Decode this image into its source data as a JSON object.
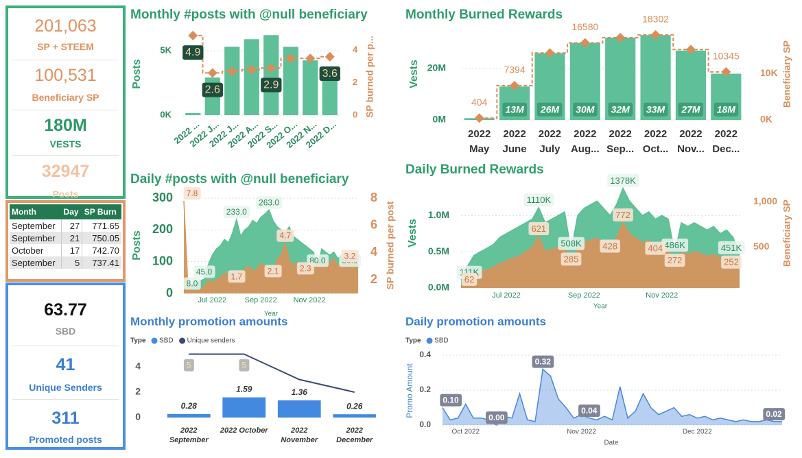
{
  "summary": [
    {
      "value": "201,063",
      "label": "SP + STEEM"
    },
    {
      "value": "100,531",
      "label": "Beneficiary SP"
    },
    {
      "value": "180M",
      "label": "VESTS"
    },
    {
      "value": "32947",
      "label": "Posts"
    }
  ],
  "table": {
    "header": [
      "Month",
      "Day",
      "SP Burn"
    ],
    "rows": [
      [
        "September",
        "27",
        "771.65"
      ],
      [
        "September",
        "21",
        "750.05"
      ],
      [
        "October",
        "17",
        "742.70"
      ],
      [
        "September",
        "5",
        "737.41"
      ]
    ]
  },
  "promotion_summary": [
    {
      "value": "63.77",
      "label": "SBD"
    },
    {
      "value": "41",
      "label": "Unique Senders"
    },
    {
      "value": "311",
      "label": "Promoted posts"
    }
  ],
  "chart_data": [
    {
      "type": "bar_line",
      "title": "Monthly #posts with @null beneficiary",
      "categories": [
        "2022 ...",
        "2022 J...",
        "2022 J...",
        "2022 A...",
        "2022 S...",
        "2022 O...",
        "2022 N...",
        "2022 D..."
      ],
      "ylabel": "Posts",
      "y2label": "SP burned per p...",
      "ylim": [
        0,
        6500
      ],
      "yticks": [
        {
          "value": 0,
          "label": "0K"
        },
        {
          "value": 5000,
          "label": "5K"
        }
      ],
      "y2lim": [
        0,
        5.15
      ],
      "y2ticks": [
        0,
        2,
        4
      ],
      "grid": true,
      "series": [
        {
          "type": "bar",
          "color": "#5fbf98",
          "values": [
            160,
            2930,
            5320,
            5900,
            6220,
            5320,
            4260,
            3460
          ]
        },
        {
          "type": "line",
          "axis": "y2",
          "color": "#d98e5a",
          "values": [
            4.9,
            2.6,
            2.7,
            2.8,
            2.9,
            3.5,
            3.5,
            3.6
          ],
          "value_labels": [
            "4.9",
            "2.6",
            null,
            null,
            "2.9",
            null,
            null,
            "3.6"
          ]
        }
      ]
    },
    {
      "type": "bar_line",
      "title": "Monthly Burned Rewards",
      "categories": [
        [
          "2022",
          "May"
        ],
        [
          "2022",
          "June"
        ],
        [
          "2022",
          "July"
        ],
        [
          "2022",
          "Aug..."
        ],
        [
          "2022",
          "Sep..."
        ],
        [
          "2022",
          "Oct..."
        ],
        [
          "2022",
          "Nov..."
        ],
        [
          "2022",
          "Dec..."
        ]
      ],
      "ylabel": "Vests",
      "y2label": "Beneficiary SP",
      "ylim": [
        0,
        36000000
      ],
      "yticks": [
        {
          "value": 0,
          "label": "0M"
        },
        {
          "value": 20000000,
          "label": "20M"
        }
      ],
      "y2lim": [
        0,
        19900
      ],
      "y2ticks": [
        {
          "value": 0,
          "label": "0K"
        },
        {
          "value": 10000,
          "label": "10K"
        }
      ],
      "grid": true,
      "series": [
        {
          "type": "bar",
          "color": "#5fbf98",
          "values": [
            700000,
            13000000,
            26000000,
            30000000,
            32000000,
            33000000,
            27000000,
            18000000
          ],
          "value_labels": [
            null,
            "13M",
            "26M",
            "30M",
            "32M",
            "33M",
            "27M",
            "18M"
          ]
        },
        {
          "type": "line",
          "axis": "y2",
          "color": "#d98e5a",
          "values": [
            404,
            7394,
            14400,
            16580,
            17700,
            18302,
            15150,
            10345
          ],
          "value_labels": [
            "404",
            "7394",
            null,
            "16580",
            null,
            "18302",
            null,
            "10345"
          ]
        }
      ]
    },
    {
      "type": "area",
      "title": "Daily #posts with @null beneficiary",
      "categories": [
        null,
        null,
        null,
        null,
        null,
        null,
        null,
        "Jul 2022",
        null,
        null,
        null,
        null,
        null,
        null,
        null,
        null,
        null,
        null,
        null,
        "Sep 2022",
        null,
        null,
        null,
        null,
        null,
        null,
        null,
        null,
        null,
        null,
        null,
        "Nov 2022",
        null,
        null,
        null,
        null,
        null,
        null,
        null,
        null,
        null,
        null,
        null,
        null
      ],
      "ylabel": "Posts",
      "y2label": "SP burned per post",
      "xlabel": "Year",
      "ylim": [
        0,
        300
      ],
      "yticks": [
        0,
        100,
        200,
        300
      ],
      "y2lim": [
        1,
        8
      ],
      "y2ticks": [
        2,
        4,
        6,
        8
      ],
      "grid": true,
      "series": [
        {
          "color": "#5cbf96",
          "values": [
            8,
            15,
            25,
            35,
            40,
            45,
            90,
            120,
            140,
            150,
            170,
            160,
            190,
            233,
            180,
            200,
            210,
            230,
            220,
            240,
            250,
            263,
            230,
            210,
            200,
            190,
            210,
            180,
            170,
            160,
            150,
            140,
            130,
            80,
            140,
            130,
            120,
            130,
            110,
            120,
            100,
            110,
            120,
            80
          ],
          "value_labels": [
            "8.0",
            null,
            null,
            null,
            null,
            "45.0",
            null,
            null,
            null,
            null,
            null,
            null,
            null,
            "233.0",
            null,
            null,
            null,
            null,
            null,
            null,
            null,
            "263.0",
            null,
            null,
            null,
            null,
            null,
            null,
            null,
            null,
            null,
            null,
            null,
            "80.0",
            null,
            null,
            null,
            null,
            null,
            null,
            null,
            null,
            null,
            "80.0"
          ]
        },
        {
          "axis": "y2",
          "color": "#d4955e",
          "values": [
            7.8,
            1.5,
            1.2,
            1.2,
            1.3,
            1.5,
            2.0,
            1.8,
            2.0,
            2.2,
            2.5,
            2.4,
            2.0,
            1.7,
            2.5,
            2.8,
            3.0,
            2.6,
            2.8,
            3.2,
            3.0,
            2.7,
            2.1,
            3.5,
            3.8,
            4.7,
            3.5,
            3.0,
            3.3,
            3.1,
            2.3,
            3.2,
            3.0,
            3.4,
            3.1,
            3.5,
            3.2,
            3.6,
            3.0,
            3.3,
            3.1,
            3.4,
            3.0,
            3.2
          ],
          "value_labels": [
            "7.8",
            null,
            null,
            null,
            null,
            null,
            null,
            null,
            null,
            null,
            null,
            null,
            null,
            "1.7",
            null,
            null,
            null,
            null,
            null,
            null,
            null,
            null,
            "2.1",
            null,
            null,
            "4.7",
            null,
            null,
            null,
            null,
            "2.3",
            null,
            null,
            null,
            null,
            null,
            null,
            null,
            null,
            null,
            null,
            null,
            null,
            "3.2"
          ]
        }
      ]
    },
    {
      "type": "area",
      "title": "Daily Burned Rewards",
      "categories": [
        null,
        null,
        null,
        null,
        null,
        null,
        null,
        "Jul 2022",
        null,
        null,
        null,
        null,
        null,
        null,
        null,
        null,
        null,
        null,
        null,
        "Sep 2022",
        null,
        null,
        null,
        null,
        null,
        null,
        null,
        null,
        null,
        null,
        null,
        "Nov 2022",
        null,
        null,
        null,
        null,
        null,
        null,
        null,
        null,
        null,
        null,
        null,
        null
      ],
      "ylabel": "Vests",
      "y2label": "Beneficiary SP",
      "xlabel": "Year",
      "ylim": [
        0,
        1400000
      ],
      "yticks": [
        {
          "value": 0,
          "label": "0.0M"
        },
        {
          "value": 500000,
          "label": "0.5M"
        },
        {
          "value": 1000000,
          "label": "1.0M"
        }
      ],
      "y2lim": [
        50,
        1170
      ],
      "y2ticks": [
        500,
        {
          "value": 1000,
          "label": "1,000"
        }
      ],
      "grid": true,
      "series": [
        {
          "color": "#5cbf96",
          "values": [
            111000,
            300000,
            450000,
            500000,
            550000,
            600000,
            700000,
            750000,
            800000,
            850000,
            900000,
            950000,
            1110000,
            900000,
            950000,
            1000000,
            1050000,
            508000,
            1000000,
            1100000,
            1150000,
            1200000,
            1100000,
            1000000,
            1150000,
            1378000,
            1200000,
            1100000,
            1000000,
            1050000,
            950000,
            1000000,
            950000,
            486000,
            900000,
            850000,
            900000,
            850000,
            800000,
            850000,
            750000,
            800000,
            700000,
            451000
          ],
          "value_labels": [
            "111K",
            null,
            null,
            null,
            null,
            null,
            null,
            null,
            null,
            null,
            null,
            null,
            "1110K",
            null,
            null,
            null,
            null,
            "508K",
            null,
            null,
            null,
            null,
            null,
            null,
            null,
            "1378K",
            null,
            null,
            null,
            null,
            null,
            null,
            null,
            "486K",
            null,
            null,
            null,
            null,
            null,
            null,
            null,
            null,
            null,
            "451K"
          ]
        },
        {
          "axis": "y2",
          "color": "#d4955e",
          "values": [
            62,
            150,
            200,
            230,
            250,
            280,
            320,
            350,
            380,
            400,
            450,
            500,
            621,
            450,
            480,
            500,
            520,
            285,
            500,
            550,
            580,
            600,
            550,
            428,
            600,
            772,
            650,
            600,
            550,
            580,
            404,
            500,
            480,
            272,
            450,
            420,
            450,
            430,
            400,
            420,
            380,
            400,
            350,
            252
          ],
          "value_labels": [
            "62",
            null,
            null,
            null,
            null,
            null,
            null,
            null,
            null,
            null,
            null,
            null,
            "621",
            null,
            null,
            null,
            null,
            "285",
            null,
            null,
            null,
            null,
            null,
            "428",
            null,
            "772",
            null,
            null,
            null,
            null,
            "404",
            null,
            null,
            "272",
            null,
            null,
            null,
            null,
            null,
            null,
            null,
            null,
            null,
            "252"
          ]
        }
      ]
    },
    {
      "type": "bar_line",
      "title": "Monthly promotion amounts",
      "legend_title": "Type",
      "categories": [
        [
          "2022",
          "September"
        ],
        [
          "2022 October"
        ],
        [
          "2022",
          "November"
        ],
        [
          "2022",
          "December"
        ]
      ],
      "ylim": [
        0,
        5.35
      ],
      "yticks": [
        0,
        2,
        4
      ],
      "grid": false,
      "series": [
        {
          "type": "bar",
          "name": "SBD",
          "color": "#4389df",
          "values": [
            0.28,
            1.59,
            1.36,
            0.26
          ],
          "value_labels": [
            "0.28",
            "1.59",
            "1.36",
            "0.26"
          ]
        },
        {
          "type": "line",
          "name": "Unique senders",
          "color": "#3b4878",
          "values": [
            5,
            5,
            3,
            2
          ],
          "value_labels": [
            "5",
            "5",
            null,
            null
          ]
        }
      ]
    },
    {
      "type": "area",
      "title": "Daily promotion amounts",
      "legend_title": "Type",
      "ylabel": "Promo Amount",
      "xlabel": "Date",
      "categories": [
        null,
        null,
        null,
        "Oct 2022",
        null,
        null,
        null,
        null,
        null,
        null,
        null,
        null,
        null,
        null,
        null,
        null,
        null,
        null,
        "Nov 2022",
        null,
        null,
        null,
        null,
        null,
        null,
        null,
        null,
        null,
        null,
        null,
        null,
        null,
        null,
        "Dec 2022",
        null,
        null,
        null,
        null,
        null,
        null,
        null,
        null,
        null,
        null,
        null
      ],
      "ylim": [
        0,
        0.4
      ],
      "yticks": [
        {
          "value": 0,
          "label": "0.0"
        },
        0.2,
        0.4
      ],
      "grid": true,
      "series": [
        {
          "name": "SBD",
          "color": "#4a86dc",
          "values": [
            0.1,
            0.03,
            0.04,
            0.12,
            0.04,
            0.04,
            0.03,
            0,
            0.05,
            0.04,
            0.18,
            0.03,
            0.02,
            0.32,
            0.28,
            0.15,
            0.1,
            0.04,
            0.06,
            0.04,
            0.03,
            0.05,
            0.03,
            0.22,
            0.04,
            0.08,
            0.18,
            0.1,
            0.06,
            0.08,
            0.1,
            0.05,
            0.06,
            0.04,
            0.05,
            0.03,
            0.04,
            0.03,
            0.02,
            0.03,
            0.02,
            0.02,
            0.03,
            0.02,
            0.02
          ],
          "value_labels": [
            "0.10",
            null,
            null,
            null,
            null,
            null,
            null,
            "0.00",
            null,
            null,
            null,
            null,
            null,
            "0.32",
            null,
            null,
            null,
            null,
            null,
            "0.04",
            null,
            null,
            null,
            null,
            null,
            null,
            null,
            null,
            null,
            null,
            null,
            null,
            null,
            null,
            null,
            null,
            null,
            null,
            null,
            null,
            null,
            null,
            null,
            null,
            "0.02"
          ]
        }
      ]
    }
  ]
}
